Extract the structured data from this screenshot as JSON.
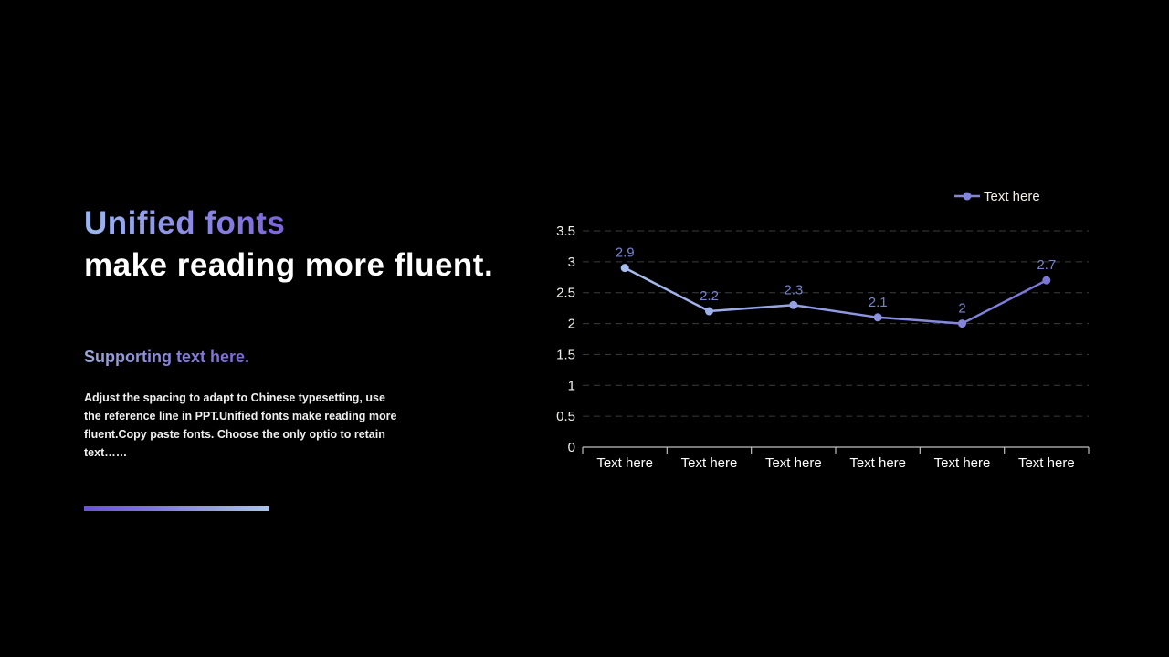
{
  "slide": {
    "title_line1": "Unified fonts",
    "title_line2": "make reading more fluent.",
    "supporting_heading": "Supporting text here.",
    "body_text": "Adjust the spacing to adapt to Chinese typesetting, use the reference line in PPT.Unified fonts make reading more fluent.Copy paste fonts. Choose the only optio to retain text……",
    "colors": {
      "background": "#000000",
      "title_gradient_start": "#9db7ee",
      "title_gradient_end": "#7c63de",
      "accent_bar_start": "#6b52d8",
      "accent_bar_end": "#a9c6e8"
    }
  },
  "chart_data": {
    "type": "line",
    "categories": [
      "Text here",
      "Text here",
      "Text here",
      "Text here",
      "Text here",
      "Text here"
    ],
    "series": [
      {
        "name": "Text here",
        "values": [
          2.9,
          2.2,
          2.3,
          2.1,
          2,
          2.7
        ]
      }
    ],
    "data_labels": [
      "2.9",
      "2.2",
      "2.3",
      "2.1",
      "2",
      "2.7"
    ],
    "ytick_labels": [
      "0",
      "0.5",
      "1",
      "1.5",
      "2",
      "2.5",
      "3",
      "3.5"
    ],
    "ylim": [
      0,
      3.5
    ],
    "ytick_step": 0.5,
    "grid": "horizontal-dashed",
    "legend_position": "top-right",
    "colors": {
      "line_gradient_start": "#abc4f0",
      "line_gradient_end": "#7670d4",
      "data_label": "#7583cd",
      "axis_line": "#bfbfbf",
      "gridline": "#3d3d3d",
      "tick_label": "#f2f0ea",
      "category_label": "#ffffff",
      "legend_text": "#f5efe6"
    }
  }
}
